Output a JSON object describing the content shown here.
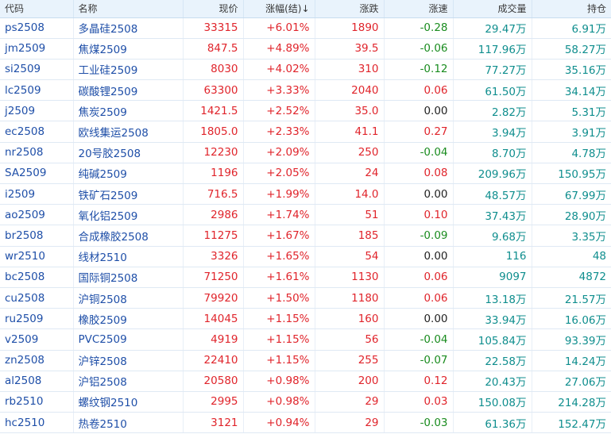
{
  "headers": {
    "code": "代码",
    "name": "名称",
    "price": "现价",
    "change_pct": "涨幅(结)↓",
    "change": "涨跌",
    "speed": "涨速",
    "volume": "成交量",
    "open_interest": "持仓"
  },
  "colors": {
    "up": "#e0242b",
    "down": "#1a8c1f",
    "flat": "#222222",
    "link": "#1f4fa8",
    "volume": "#0f8e8e",
    "header_bg": "#e9f3fc"
  },
  "rows": [
    {
      "code": "ps2508",
      "name": "多晶硅2508",
      "price": "33315",
      "change_pct": "+6.01%",
      "change": "1890",
      "speed": "-0.28",
      "volume": "29.47万",
      "open_interest": "6.91万"
    },
    {
      "code": "jm2509",
      "name": "焦煤2509",
      "price": "847.5",
      "change_pct": "+4.89%",
      "change": "39.5",
      "speed": "-0.06",
      "volume": "117.96万",
      "open_interest": "58.27万"
    },
    {
      "code": "si2509",
      "name": "工业硅2509",
      "price": "8030",
      "change_pct": "+4.02%",
      "change": "310",
      "speed": "-0.12",
      "volume": "77.27万",
      "open_interest": "35.16万"
    },
    {
      "code": "lc2509",
      "name": "碳酸锂2509",
      "price": "63300",
      "change_pct": "+3.33%",
      "change": "2040",
      "speed": "0.06",
      "volume": "61.50万",
      "open_interest": "34.14万"
    },
    {
      "code": "j2509",
      "name": "焦炭2509",
      "price": "1421.5",
      "change_pct": "+2.52%",
      "change": "35.0",
      "speed": "0.00",
      "volume": "2.82万",
      "open_interest": "5.31万"
    },
    {
      "code": "ec2508",
      "name": "欧线集运2508",
      "price": "1805.0",
      "change_pct": "+2.33%",
      "change": "41.1",
      "speed": "0.27",
      "volume": "3.94万",
      "open_interest": "3.91万"
    },
    {
      "code": "nr2508",
      "name": "20号胶2508",
      "price": "12230",
      "change_pct": "+2.09%",
      "change": "250",
      "speed": "-0.04",
      "volume": "8.70万",
      "open_interest": "4.78万"
    },
    {
      "code": "SA2509",
      "name": "纯碱2509",
      "price": "1196",
      "change_pct": "+2.05%",
      "change": "24",
      "speed": "0.08",
      "volume": "209.96万",
      "open_interest": "150.95万"
    },
    {
      "code": "i2509",
      "name": "铁矿石2509",
      "price": "716.5",
      "change_pct": "+1.99%",
      "change": "14.0",
      "speed": "0.00",
      "volume": "48.57万",
      "open_interest": "67.99万"
    },
    {
      "code": "ao2509",
      "name": "氧化铝2509",
      "price": "2986",
      "change_pct": "+1.74%",
      "change": "51",
      "speed": "0.10",
      "volume": "37.43万",
      "open_interest": "28.90万"
    },
    {
      "code": "br2508",
      "name": "合成橡胶2508",
      "price": "11275",
      "change_pct": "+1.67%",
      "change": "185",
      "speed": "-0.09",
      "volume": "9.68万",
      "open_interest": "3.35万"
    },
    {
      "code": "wr2510",
      "name": "线材2510",
      "price": "3326",
      "change_pct": "+1.65%",
      "change": "54",
      "speed": "0.00",
      "volume": "116",
      "open_interest": "48"
    },
    {
      "code": "bc2508",
      "name": "国际铜2508",
      "price": "71250",
      "change_pct": "+1.61%",
      "change": "1130",
      "speed": "0.06",
      "volume": "9097",
      "open_interest": "4872"
    },
    {
      "code": "cu2508",
      "name": "沪铜2508",
      "price": "79920",
      "change_pct": "+1.50%",
      "change": "1180",
      "speed": "0.06",
      "volume": "13.18万",
      "open_interest": "21.57万"
    },
    {
      "code": "ru2509",
      "name": "橡胶2509",
      "price": "14045",
      "change_pct": "+1.15%",
      "change": "160",
      "speed": "0.00",
      "volume": "33.94万",
      "open_interest": "16.06万"
    },
    {
      "code": "v2509",
      "name": "PVC2509",
      "price": "4919",
      "change_pct": "+1.15%",
      "change": "56",
      "speed": "-0.04",
      "volume": "105.84万",
      "open_interest": "93.39万"
    },
    {
      "code": "zn2508",
      "name": "沪锌2508",
      "price": "22410",
      "change_pct": "+1.15%",
      "change": "255",
      "speed": "-0.07",
      "volume": "22.58万",
      "open_interest": "14.24万"
    },
    {
      "code": "al2508",
      "name": "沪铝2508",
      "price": "20580",
      "change_pct": "+0.98%",
      "change": "200",
      "speed": "0.12",
      "volume": "20.43万",
      "open_interest": "27.06万"
    },
    {
      "code": "rb2510",
      "name": "螺纹钢2510",
      "price": "2995",
      "change_pct": "+0.98%",
      "change": "29",
      "speed": "0.03",
      "volume": "150.08万",
      "open_interest": "214.28万"
    },
    {
      "code": "hc2510",
      "name": "热卷2510",
      "price": "3121",
      "change_pct": "+0.94%",
      "change": "29",
      "speed": "-0.03",
      "volume": "61.36万",
      "open_interest": "152.47万"
    }
  ]
}
